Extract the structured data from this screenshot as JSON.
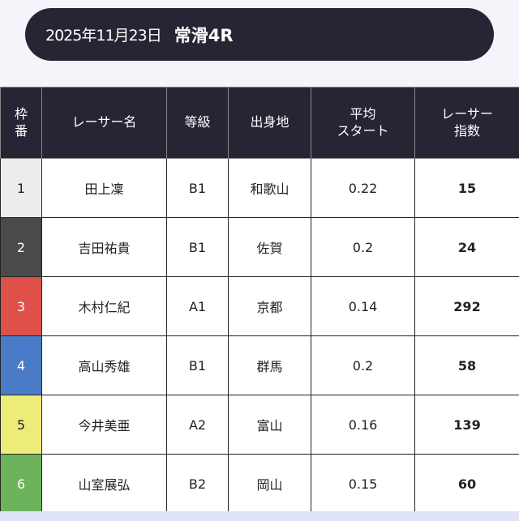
{
  "header": {
    "date": "2025年11月23日",
    "race": "常滑4R"
  },
  "table": {
    "columns": [
      [
        "枠",
        "番"
      ],
      [
        "レーサー名"
      ],
      [
        "等級"
      ],
      [
        "出身地"
      ],
      [
        "平均",
        "スタート"
      ],
      [
        "レーサー",
        "指数"
      ]
    ],
    "rows": [
      {
        "frame": "1",
        "name": "田上凜",
        "grade": "B1",
        "hometown": "和歌山",
        "avg_start": "0.22",
        "index": "15",
        "color": "#ececec",
        "text_color": "#222222"
      },
      {
        "frame": "2",
        "name": "吉田祐貴",
        "grade": "B1",
        "hometown": "佐賀",
        "avg_start": "0.2",
        "index": "24",
        "color": "#4a4a4a",
        "text_color": "#ffffff"
      },
      {
        "frame": "3",
        "name": "木村仁紀",
        "grade": "A1",
        "hometown": "京都",
        "avg_start": "0.14",
        "index": "292",
        "color": "#e0504a",
        "text_color": "#ffffff"
      },
      {
        "frame": "4",
        "name": "高山秀雄",
        "grade": "B1",
        "hometown": "群馬",
        "avg_start": "0.2",
        "index": "58",
        "color": "#4a7bc8",
        "text_color": "#ffffff"
      },
      {
        "frame": "5",
        "name": "今井美亜",
        "grade": "A2",
        "hometown": "富山",
        "avg_start": "0.16",
        "index": "139",
        "color": "#eeec78",
        "text_color": "#222222"
      },
      {
        "frame": "6",
        "name": "山室展弘",
        "grade": "B2",
        "hometown": "岡山",
        "avg_start": "0.15",
        "index": "60",
        "color": "#6db35c",
        "text_color": "#ffffff"
      }
    ]
  }
}
